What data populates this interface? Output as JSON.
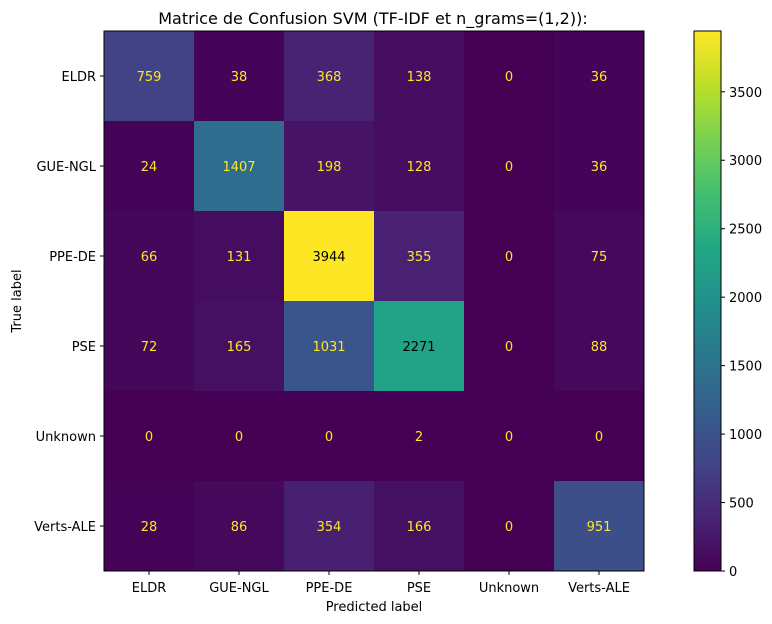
{
  "chart_data": {
    "type": "heatmap",
    "title": "Matrice de Confusion SVM (TF-IDF et n_grams=(1,2)):",
    "xlabel": "Predicted label",
    "ylabel": "True label",
    "x_categories": [
      "ELDR",
      "GUE-NGL",
      "PPE-DE",
      "PSE",
      "Unknown",
      "Verts-ALE"
    ],
    "y_categories": [
      "ELDR",
      "GUE-NGL",
      "PPE-DE",
      "PSE",
      "Unknown",
      "Verts-ALE"
    ],
    "matrix": [
      [
        759,
        38,
        368,
        138,
        0,
        36
      ],
      [
        24,
        1407,
        198,
        128,
        0,
        36
      ],
      [
        66,
        131,
        3944,
        355,
        0,
        75
      ],
      [
        72,
        165,
        1031,
        2271,
        0,
        88
      ],
      [
        0,
        0,
        0,
        2,
        0,
        0
      ],
      [
        28,
        86,
        354,
        166,
        0,
        951
      ]
    ],
    "colormap": "viridis",
    "colorbar": {
      "range": [
        0,
        3944
      ],
      "ticks": [
        0,
        500,
        1000,
        1500,
        2000,
        2500,
        3000,
        3500
      ]
    },
    "label_colors": {
      "light": "#fde725",
      "dark": "#000000"
    }
  }
}
